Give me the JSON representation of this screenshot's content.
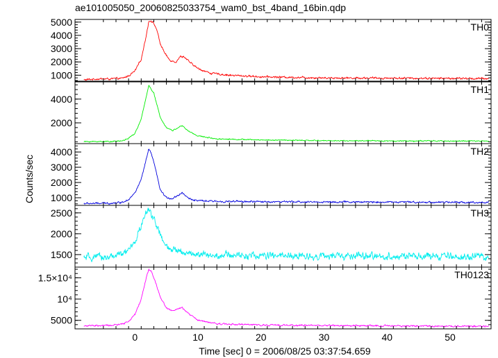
{
  "chart_data": {
    "type": "line",
    "title": "ae101005050_20060825033754_wam0_bst_4band_16bin.qdp",
    "xlabel": "Time [sec] 0 = 2006/08/25 03:37:54.659",
    "ylabel": "Counts/sec",
    "xlim": [
      -9.5,
      56.5
    ],
    "x_ticks": [
      0,
      10,
      20,
      30,
      40,
      50
    ],
    "x_tick_labels": [
      "0",
      "10",
      "20",
      "30",
      "40",
      "50"
    ],
    "grid": false,
    "legend": "none",
    "panels": [
      {
        "name": "TH0",
        "color": "#ff0000",
        "ylim": [
          550,
          5200
        ],
        "y_ticks": [
          1000,
          2000,
          3000,
          4000,
          5000
        ],
        "y_tick_labels": [
          "1000",
          "2000",
          "3000",
          "4000",
          "5000"
        ],
        "profile": [
          [
            -8,
            650
          ],
          [
            -6,
            720
          ],
          [
            -4,
            720
          ],
          [
            -2,
            760
          ],
          [
            -1,
            950
          ],
          [
            0,
            1300
          ],
          [
            1,
            2200
          ],
          [
            1.8,
            4000
          ],
          [
            2.2,
            5050
          ],
          [
            2.6,
            5100
          ],
          [
            3.0,
            4900
          ],
          [
            3.5,
            4400
          ],
          [
            4,
            3400
          ],
          [
            4.8,
            2600
          ],
          [
            5.5,
            2150
          ],
          [
            6.5,
            2000
          ],
          [
            7.2,
            2400
          ],
          [
            7.8,
            2400
          ],
          [
            8.5,
            2050
          ],
          [
            10,
            1500
          ],
          [
            12,
            1150
          ],
          [
            15,
            1000
          ],
          [
            20,
            880
          ],
          [
            30,
            800
          ],
          [
            40,
            780
          ],
          [
            50,
            760
          ],
          [
            56,
            740
          ]
        ],
        "noise": 70
      },
      {
        "name": "TH1",
        "color": "#00ee00",
        "ylim": [
          250,
          5450
        ],
        "y_ticks": [
          2000,
          4000
        ],
        "y_tick_labels": [
          "2000",
          "4000"
        ],
        "profile": [
          [
            -8,
            420
          ],
          [
            -4,
            430
          ],
          [
            -2,
            480
          ],
          [
            -1,
            700
          ],
          [
            0,
            1100
          ],
          [
            1,
            2300
          ],
          [
            1.8,
            4200
          ],
          [
            2.2,
            5200
          ],
          [
            2.6,
            4800
          ],
          [
            3,
            4500
          ],
          [
            3.5,
            3500
          ],
          [
            4,
            2500
          ],
          [
            5,
            1600
          ],
          [
            6,
            1350
          ],
          [
            7,
            1650
          ],
          [
            7.5,
            1750
          ],
          [
            8.5,
            1300
          ],
          [
            10,
            900
          ],
          [
            13,
            650
          ],
          [
            20,
            560
          ],
          [
            30,
            500
          ],
          [
            40,
            480
          ],
          [
            50,
            470
          ],
          [
            56,
            460
          ]
        ],
        "noise": 45
      },
      {
        "name": "TH2",
        "color": "#0000dd",
        "ylim": [
          500,
          4550
        ],
        "y_ticks": [
          1000,
          2000,
          3000,
          4000
        ],
        "y_tick_labels": [
          "1000",
          "2000",
          "3000",
          "4000"
        ],
        "profile": [
          [
            -8,
            620
          ],
          [
            -4,
            640
          ],
          [
            -2,
            700
          ],
          [
            -1,
            900
          ],
          [
            0,
            1300
          ],
          [
            1,
            2200
          ],
          [
            1.8,
            3500
          ],
          [
            2.2,
            4200
          ],
          [
            2.6,
            3900
          ],
          [
            3,
            3300
          ],
          [
            3.5,
            2500
          ],
          [
            4,
            1500
          ],
          [
            5,
            1000
          ],
          [
            6,
            950
          ],
          [
            7,
            1200
          ],
          [
            7.5,
            1350
          ],
          [
            8.5,
            950
          ],
          [
            10,
            800
          ],
          [
            13,
            760
          ],
          [
            20,
            740
          ],
          [
            30,
            720
          ],
          [
            40,
            720
          ],
          [
            50,
            700
          ],
          [
            56,
            690
          ]
        ],
        "noise": 55
      },
      {
        "name": "TH3",
        "color": "#00eeee",
        "ylim": [
          1200,
          2680
        ],
        "y_ticks": [
          1500,
          2000,
          2500
        ],
        "y_tick_labels": [
          "1500",
          "2000",
          "2500"
        ],
        "profile": [
          [
            -8,
            1420
          ],
          [
            -4,
            1450
          ],
          [
            -2,
            1500
          ],
          [
            -1,
            1600
          ],
          [
            0,
            1800
          ],
          [
            1,
            2200
          ],
          [
            1.8,
            2500
          ],
          [
            2.2,
            2550
          ],
          [
            2.6,
            2500
          ],
          [
            3.2,
            2300
          ],
          [
            3.8,
            2050
          ],
          [
            4.5,
            1800
          ],
          [
            5.5,
            1600
          ],
          [
            7,
            1600
          ],
          [
            8,
            1550
          ],
          [
            10,
            1500
          ],
          [
            20,
            1470
          ],
          [
            30,
            1460
          ],
          [
            40,
            1460
          ],
          [
            50,
            1450
          ],
          [
            56,
            1450
          ]
        ],
        "noise": 85
      },
      {
        "name": "TH0123",
        "color": "#ff00ff",
        "ylim": [
          3000,
          17500
        ],
        "y_ticks": [
          5000,
          10000,
          15000
        ],
        "y_tick_labels": [
          "5000",
          "10⁴",
          "1.5×10⁴"
        ],
        "profile": [
          [
            -8,
            3700
          ],
          [
            -4,
            3800
          ],
          [
            -2,
            4100
          ],
          [
            -1,
            4800
          ],
          [
            0,
            6300
          ],
          [
            1,
            10000
          ],
          [
            1.8,
            15000
          ],
          [
            2.2,
            17000
          ],
          [
            2.6,
            16500
          ],
          [
            3,
            15000
          ],
          [
            3.5,
            13000
          ],
          [
            4,
            10500
          ],
          [
            5,
            8000
          ],
          [
            6,
            7200
          ],
          [
            7,
            7800
          ],
          [
            7.5,
            7900
          ],
          [
            8.5,
            6600
          ],
          [
            10,
            5000
          ],
          [
            13,
            4200
          ],
          [
            20,
            3900
          ],
          [
            30,
            3800
          ],
          [
            40,
            3700
          ],
          [
            50,
            3650
          ],
          [
            56,
            3600
          ]
        ],
        "noise": 180
      }
    ]
  }
}
